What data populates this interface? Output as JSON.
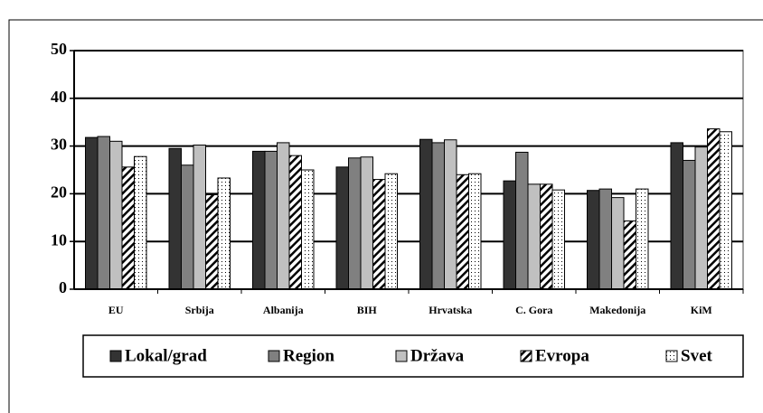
{
  "chart_data": {
    "type": "bar",
    "categories": [
      "EU",
      "Srbija",
      "Albanija",
      "BIH",
      "Hrvatska",
      "C. Gora",
      "Makedonija",
      "KiM"
    ],
    "series": [
      {
        "name": "Lokal/grad",
        "color": "#333333",
        "values": [
          31.8,
          29.5,
          28.9,
          25.6,
          31.4,
          22.7,
          20.7,
          30.7
        ]
      },
      {
        "name": "Region",
        "color": "#808080",
        "values": [
          32,
          26,
          28.9,
          27.5,
          30.7,
          28.7,
          21,
          27
        ]
      },
      {
        "name": "Država",
        "color": "#c0c0c0",
        "values": [
          31,
          30.2,
          30.7,
          27.7,
          31.3,
          22,
          19.2,
          29.8
        ]
      },
      {
        "name": "Evropa",
        "color": "url(#hatch)",
        "values": [
          25.6,
          19.8,
          28,
          23,
          24,
          22,
          14.3,
          33.6
        ]
      },
      {
        "name": "Svet",
        "color": "url(#dots)",
        "values": [
          27.8,
          23.3,
          25,
          24.2,
          24.2,
          20.8,
          21,
          33
        ]
      }
    ],
    "ylim": [
      0,
      50
    ],
    "yticks": [
      0,
      10,
      20,
      30,
      40,
      50
    ],
    "grid": true,
    "legend": "bottom"
  }
}
